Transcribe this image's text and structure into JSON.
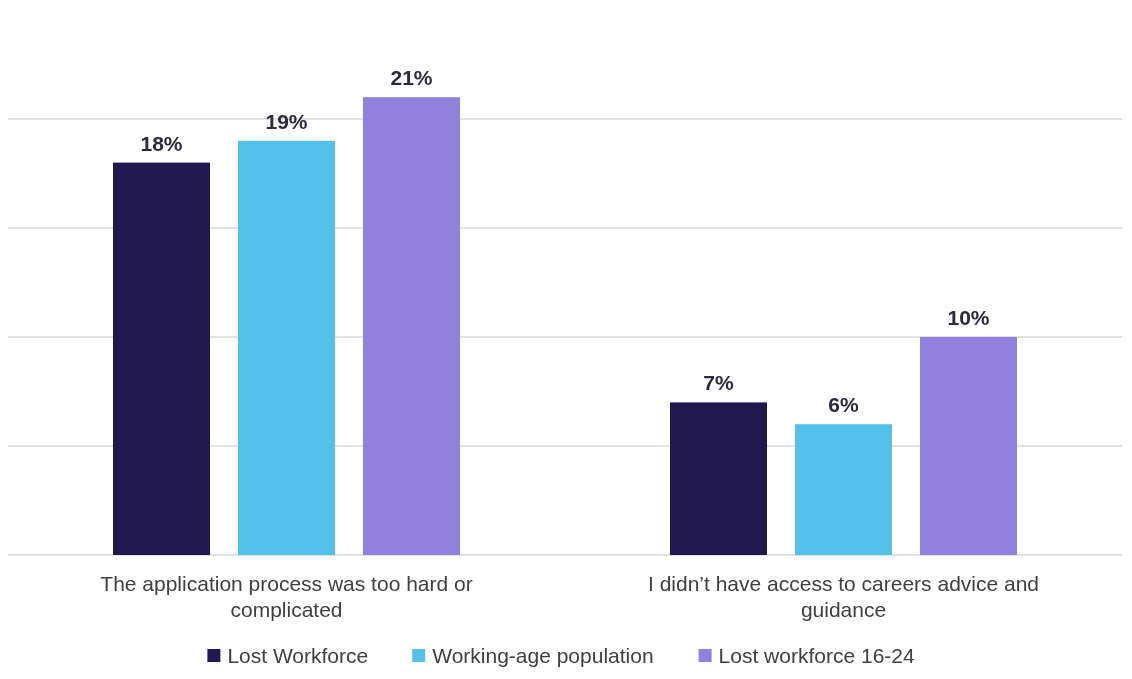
{
  "chart_data": {
    "type": "bar",
    "categories": [
      "The application process was too hard or complicated",
      "I didn’t have access to careers advice and guidance"
    ],
    "series": [
      {
        "name": "Lost Workforce",
        "color": "#20184e",
        "values": [
          18,
          7
        ],
        "value_labels": [
          "18%",
          "7%"
        ]
      },
      {
        "name": "Working-age population",
        "color": "#56c1e8",
        "values": [
          19,
          6
        ],
        "value_labels": [
          "19%",
          "6%"
        ]
      },
      {
        "name": "Lost workforce 16-24",
        "color": "#9181dd",
        "values": [
          21,
          10
        ],
        "value_labels": [
          "21%",
          "10%"
        ]
      }
    ],
    "yticks": [
      {
        "value": 0,
        "label": null
      },
      {
        "value": 5,
        "label": null
      },
      {
        "value": 10,
        "label": null
      },
      {
        "value": 15,
        "label": null
      },
      {
        "value": 20,
        "label": null
      }
    ],
    "grid": "y",
    "legend": "bottom",
    "tick_labels": "x"
  }
}
